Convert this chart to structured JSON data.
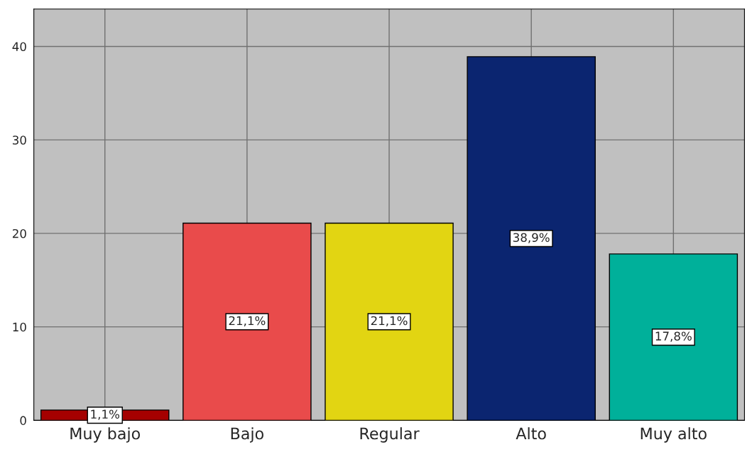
{
  "chart_data": {
    "type": "bar",
    "categories": [
      "Muy bajo",
      "Bajo",
      "Regular",
      "Alto",
      "Muy alto"
    ],
    "values": [
      1.1,
      21.1,
      21.1,
      38.9,
      17.8
    ],
    "colors": [
      "#a50000",
      "#e94b4b",
      "#e2d512",
      "#0b2570",
      "#00b09a"
    ],
    "value_labels": [
      "1,1%",
      "21,1%",
      "21,1%",
      "38,9%",
      "17,8%"
    ],
    "ylim": [
      0,
      44
    ],
    "yticks": [
      0,
      10,
      20,
      30,
      40
    ],
    "grid": true
  }
}
